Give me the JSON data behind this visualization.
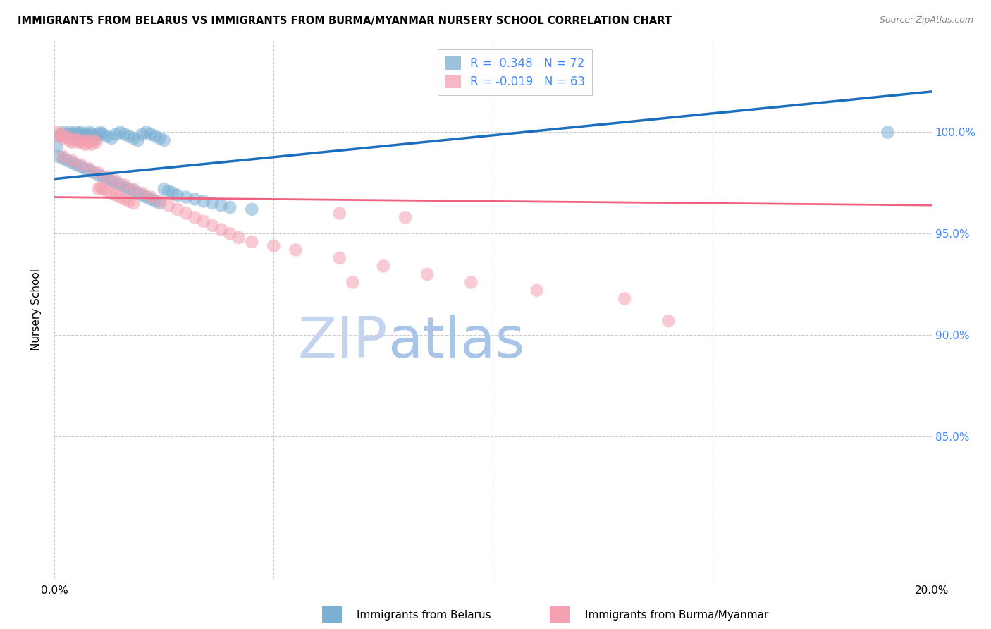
{
  "title": "IMMIGRANTS FROM BELARUS VS IMMIGRANTS FROM BURMA/MYANMAR NURSERY SCHOOL CORRELATION CHART",
  "source": "Source: ZipAtlas.com",
  "ylabel": "Nursery School",
  "y_tick_labels": [
    "100.0%",
    "95.0%",
    "90.0%",
    "85.0%"
  ],
  "y_tick_values": [
    1.0,
    0.95,
    0.9,
    0.85
  ],
  "x_range": [
    0.0,
    0.2
  ],
  "y_range": [
    0.78,
    1.045
  ],
  "legend_belarus": "Immigrants from Belarus",
  "legend_burma": "Immigrants from Burma/Myanmar",
  "R_belarus": 0.348,
  "N_belarus": 72,
  "R_burma": -0.019,
  "N_burma": 63,
  "color_belarus": "#7BAFD4",
  "color_burma": "#F4A0B0",
  "color_line_belarus": "#1A6EBD",
  "color_line_burma": "#F06080",
  "color_right_axis": "#4488FF",
  "watermark_zip_color": "#D0DCF0",
  "watermark_atlas_color": "#C8D8F0",
  "background_color": "#FFFFFF",
  "grid_color": "#CCCCCC",
  "belarus_x": [
    0.0005,
    0.001,
    0.0015,
    0.002,
    0.0025,
    0.003,
    0.0035,
    0.004,
    0.0045,
    0.005,
    0.0055,
    0.006,
    0.0065,
    0.007,
    0.0075,
    0.008,
    0.0085,
    0.009,
    0.0095,
    0.01,
    0.0105,
    0.011,
    0.012,
    0.013,
    0.014,
    0.015,
    0.016,
    0.017,
    0.018,
    0.019,
    0.02,
    0.021,
    0.022,
    0.023,
    0.024,
    0.025,
    0.001,
    0.002,
    0.003,
    0.004,
    0.005,
    0.006,
    0.007,
    0.008,
    0.009,
    0.01,
    0.011,
    0.012,
    0.013,
    0.014,
    0.015,
    0.016,
    0.017,
    0.018,
    0.019,
    0.02,
    0.021,
    0.022,
    0.023,
    0.024,
    0.025,
    0.026,
    0.027,
    0.028,
    0.03,
    0.032,
    0.034,
    0.036,
    0.038,
    0.04,
    0.045,
    0.19
  ],
  "belarus_y": [
    0.993,
    0.998,
    0.999,
    1.0,
    0.998,
    0.999,
    1.0,
    0.999,
    0.998,
    1.0,
    0.999,
    1.0,
    0.999,
    0.998,
    0.999,
    1.0,
    0.999,
    0.998,
    0.997,
    0.999,
    1.0,
    0.999,
    0.998,
    0.997,
    0.999,
    1.0,
    0.999,
    0.998,
    0.997,
    0.996,
    0.999,
    1.0,
    0.999,
    0.998,
    0.997,
    0.996,
    0.988,
    0.987,
    0.986,
    0.985,
    0.984,
    0.983,
    0.982,
    0.981,
    0.98,
    0.979,
    0.978,
    0.977,
    0.976,
    0.975,
    0.974,
    0.973,
    0.972,
    0.971,
    0.97,
    0.969,
    0.968,
    0.967,
    0.966,
    0.965,
    0.972,
    0.971,
    0.97,
    0.969,
    0.968,
    0.967,
    0.966,
    0.965,
    0.964,
    0.963,
    0.962,
    1.0
  ],
  "burma_x": [
    0.0005,
    0.001,
    0.0015,
    0.002,
    0.0025,
    0.003,
    0.0035,
    0.004,
    0.0045,
    0.005,
    0.0055,
    0.006,
    0.0065,
    0.007,
    0.0075,
    0.008,
    0.0085,
    0.009,
    0.0095,
    0.01,
    0.0105,
    0.011,
    0.012,
    0.013,
    0.014,
    0.015,
    0.016,
    0.017,
    0.018,
    0.002,
    0.004,
    0.006,
    0.008,
    0.01,
    0.012,
    0.014,
    0.016,
    0.018,
    0.02,
    0.022,
    0.024,
    0.026,
    0.028,
    0.03,
    0.032,
    0.034,
    0.036,
    0.038,
    0.04,
    0.042,
    0.045,
    0.05,
    0.055,
    0.065,
    0.075,
    0.085,
    0.095,
    0.11,
    0.13,
    0.14,
    0.065,
    0.08,
    0.068
  ],
  "burma_y": [
    1.0,
    0.998,
    0.999,
    0.997,
    0.998,
    0.997,
    0.996,
    0.995,
    0.997,
    0.996,
    0.995,
    0.996,
    0.995,
    0.994,
    0.996,
    0.995,
    0.994,
    0.996,
    0.995,
    0.972,
    0.973,
    0.972,
    0.971,
    0.97,
    0.969,
    0.968,
    0.967,
    0.966,
    0.965,
    0.988,
    0.986,
    0.984,
    0.982,
    0.98,
    0.978,
    0.976,
    0.974,
    0.972,
    0.97,
    0.968,
    0.966,
    0.964,
    0.962,
    0.96,
    0.958,
    0.956,
    0.954,
    0.952,
    0.95,
    0.948,
    0.946,
    0.944,
    0.942,
    0.938,
    0.934,
    0.93,
    0.926,
    0.922,
    0.918,
    0.907,
    0.96,
    0.958,
    0.926
  ],
  "burma_line_x": [
    0.0,
    0.2
  ],
  "burma_line_y": [
    0.968,
    0.964
  ],
  "belarus_line_x": [
    0.0,
    0.2
  ],
  "belarus_line_y": [
    0.977,
    1.02
  ]
}
